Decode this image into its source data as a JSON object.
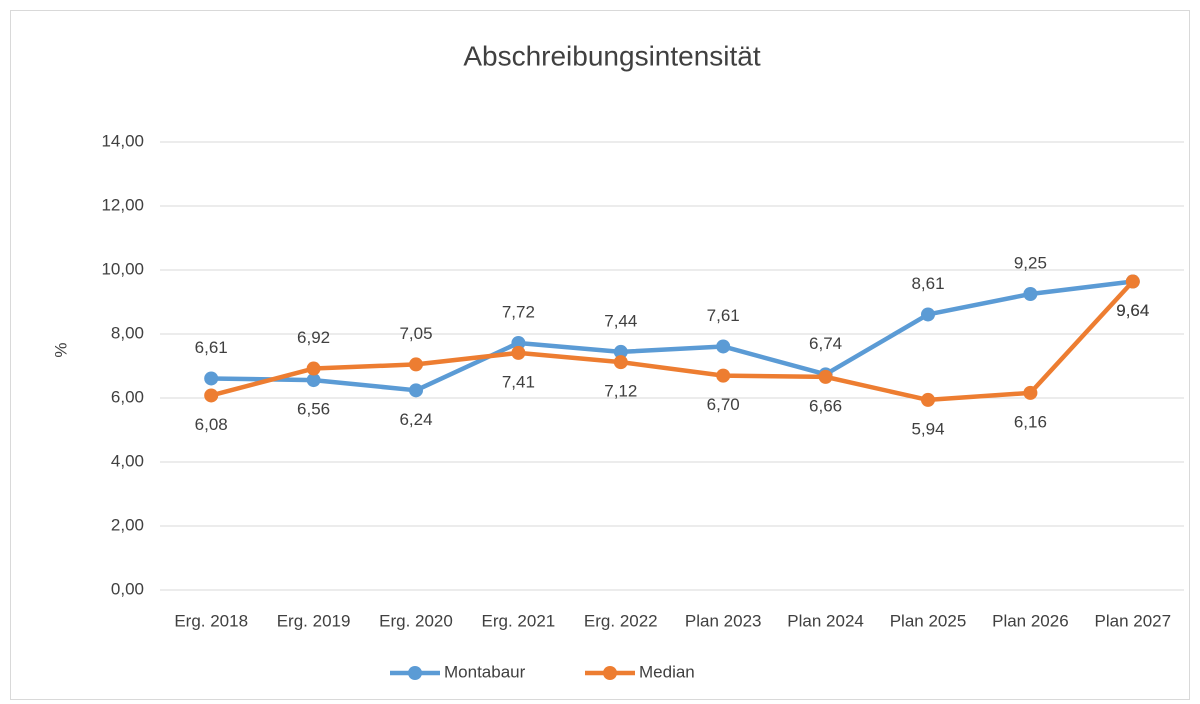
{
  "chart_data": {
    "type": "line",
    "title": "Abschreibungsintensität",
    "y_label": "%",
    "categories": [
      "Erg. 2018",
      "Erg. 2019",
      "Erg. 2020",
      "Erg. 2021",
      "Erg. 2022",
      "Plan 2023",
      "Plan 2024",
      "Plan 2025",
      "Plan 2026",
      "Plan 2027"
    ],
    "series": [
      {
        "name": "Montabaur",
        "color": "#5b9bd5",
        "values": [
          6.61,
          6.56,
          6.24,
          7.72,
          7.44,
          7.61,
          6.74,
          8.61,
          9.25,
          9.64
        ],
        "value_labels": [
          "6,61",
          "6,56",
          "6,24",
          "7,72",
          "7,44",
          "7,61",
          "6,74",
          "8,61",
          "9,25",
          "9,64"
        ]
      },
      {
        "name": "Median",
        "color": "#ed7d31",
        "values": [
          6.08,
          6.92,
          7.05,
          7.41,
          7.12,
          6.7,
          6.66,
          5.94,
          6.16,
          9.64
        ],
        "value_labels": [
          "6,08",
          "6,92",
          "7,05",
          "7,41",
          "7,12",
          "6,70",
          "6,66",
          "5,94",
          "6,16",
          "9,64"
        ]
      }
    ],
    "ylim": [
      0,
      14
    ],
    "yticks": [
      {
        "value": 0,
        "label": "0,00"
      },
      {
        "value": 2,
        "label": "2,00"
      },
      {
        "value": 4,
        "label": "4,00"
      },
      {
        "value": 6,
        "label": "6,00"
      },
      {
        "value": 8,
        "label": "8,00"
      },
      {
        "value": 10,
        "label": "10,00"
      },
      {
        "value": 12,
        "label": "12,00"
      },
      {
        "value": 14,
        "label": "14,00"
      }
    ],
    "grid": true,
    "legend": "bottom"
  }
}
